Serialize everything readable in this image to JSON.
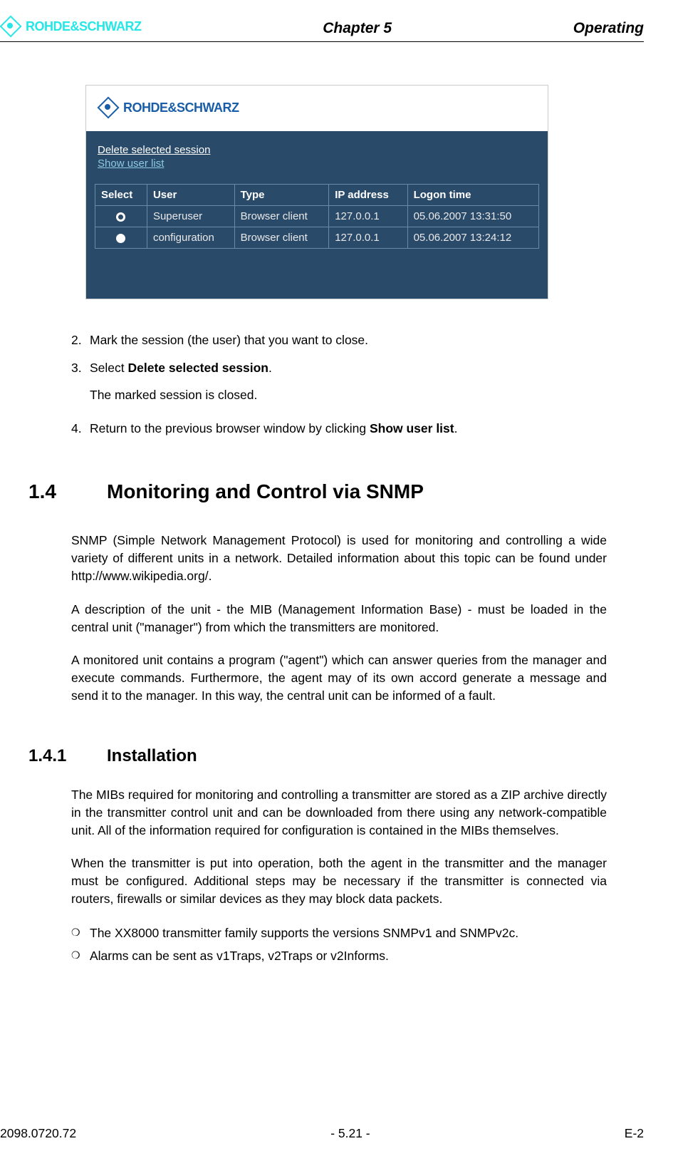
{
  "header": {
    "logo_text": "ROHDE&SCHWARZ",
    "chapter": "Chapter 5",
    "section": "Operating"
  },
  "screenshot": {
    "logo_text": "ROHDE&SCHWARZ",
    "link_delete": "Delete selected session",
    "link_show": "Show user list",
    "table": {
      "headers": [
        "Select",
        "User",
        "Type",
        "IP address",
        "Logon time"
      ],
      "rows": [
        {
          "selected": true,
          "user": "Superuser",
          "type": "Browser client",
          "ip": "127.0.0.1",
          "time": "05.06.2007 13:31:50"
        },
        {
          "selected": false,
          "user": "configuration",
          "type": "Browser client",
          "ip": "127.0.0.1",
          "time": "05.06.2007 13:24:12"
        }
      ]
    }
  },
  "steps": {
    "s2": "Mark the session (the user) that you want to close.",
    "s3_pre": "Select ",
    "s3_bold": "Delete selected session",
    "s3_post": ".",
    "s3_sub": "The marked session is closed.",
    "s4_pre": "Return to the previous browser window by clicking ",
    "s4_bold": "Show user list",
    "s4_post": "."
  },
  "sec14": {
    "num": "1.4",
    "title": "Monitoring and Control via SNMP",
    "p1": "SNMP (Simple Network Management Protocol) is used for monitoring and controlling a wide variety of different units in a network. Detailed information about this topic can be found under http://www.wikipedia.org/.",
    "p2": "A description of the unit - the MIB (Management Information Base) - must be loaded in the central unit (\"manager\") from which the transmitters are monitored.",
    "p3": "A monitored unit contains a program (\"agent\") which can answer queries from the manager and execute commands. Furthermore, the agent may of its own accord generate a message and send it to the manager. In this way, the central unit can be informed of a fault."
  },
  "sec141": {
    "num": "1.4.1",
    "title": "Installation",
    "p1": "The MIBs required for monitoring and controlling a transmitter are stored as a ZIP archive directly in the transmitter control unit and can be downloaded from there using any network-compatible unit. All of the information required for configuration is contained in the MIBs themselves.",
    "p2": "When the transmitter is put into operation, both the agent in the transmitter and the manager must be configured. Additional steps may be necessary if the transmitter is connected via routers, firewalls or similar devices as they may block data packets.",
    "b1": "The XX8000 transmitter family supports the versions SNMPv1 and SNMPv2c.",
    "b2": "Alarms can be sent as v1Traps, v2Traps or v2Informs."
  },
  "footer": {
    "left": "2098.0720.72",
    "center": "- 5.21 -",
    "right": "E-2"
  }
}
